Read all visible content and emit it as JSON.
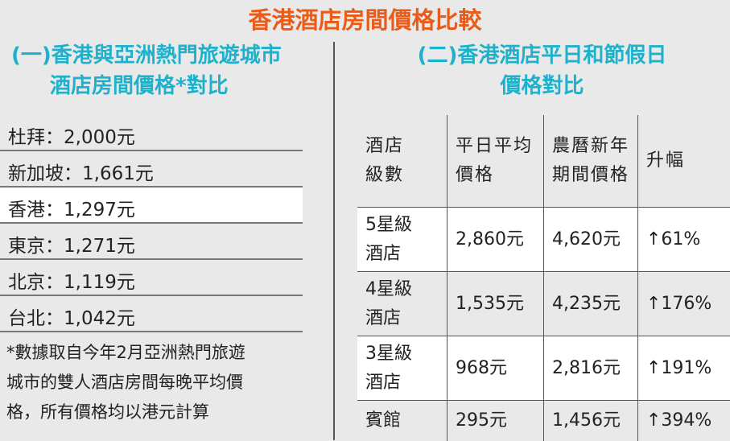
{
  "title": "香港酒店房間價格比較",
  "left": {
    "heading": [
      "(一)香港與亞洲熱門旅遊城市",
      "酒店房間價格*對比"
    ],
    "rows": [
      {
        "text": "杜拜：2,000元"
      },
      {
        "text": "新加坡：1,661元"
      },
      {
        "text": "香港：1,297元",
        "highlight": true
      },
      {
        "text": "東京：1,271元"
      },
      {
        "text": "北京：1,119元"
      },
      {
        "text": "台北：1,042元"
      }
    ],
    "note": [
      "*數據取自今年2月亞洲熱門旅遊",
      "城市的雙人酒店房間每晚平均價",
      "格，所有價格均以港元計算"
    ]
  },
  "right": {
    "heading": [
      "(二)香港酒店平日和節假日",
      "價格對比"
    ],
    "headers": [
      [
        "酒店",
        "級數"
      ],
      [
        "平日平均",
        "價格"
      ],
      [
        "農曆新年",
        "期間價格"
      ],
      [
        "升幅"
      ]
    ],
    "rows": [
      {
        "grade": [
          "5星級",
          "酒店"
        ],
        "weekday": "2,860元",
        "cny": "4,620元",
        "rise": "↑61%"
      },
      {
        "grade": [
          "4星級",
          "酒店"
        ],
        "weekday": "1,535元",
        "cny": "4,235元",
        "rise": "↑176%"
      },
      {
        "grade": [
          "3星級",
          "酒店"
        ],
        "weekday": "968元",
        "cny": "2,816元",
        "rise": "↑191%"
      },
      {
        "grade": [
          "賓館"
        ],
        "weekday": "295元",
        "cny": "1,456元",
        "rise": "↑394%"
      }
    ]
  },
  "colors": {
    "title": "#ea5b17",
    "heading": "#1eb1cb",
    "background": "#e9e9e9"
  }
}
